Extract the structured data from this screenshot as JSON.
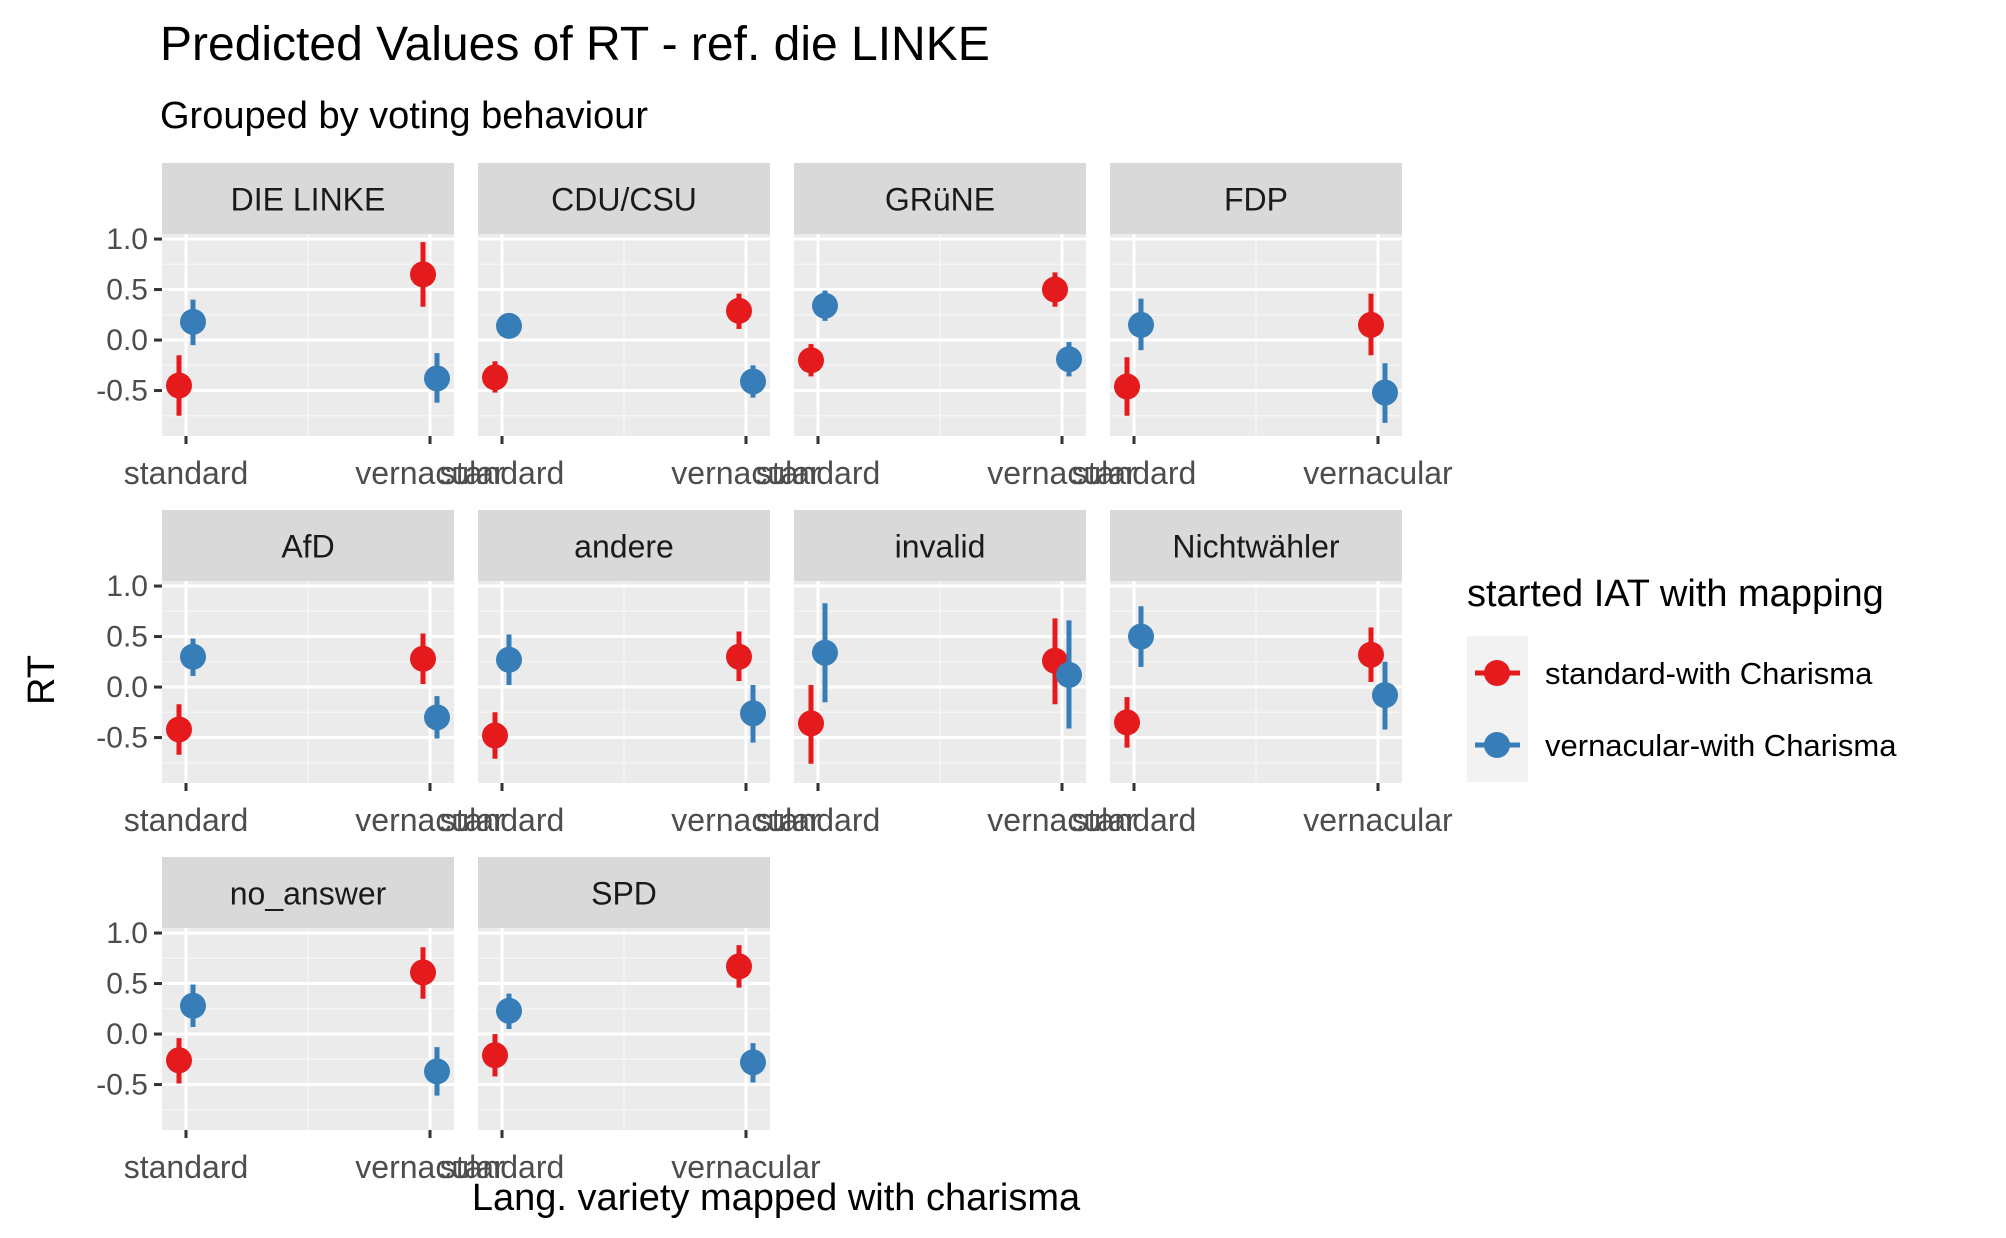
{
  "chart_data": {
    "type": "scatter",
    "title": "Predicted Values of RT - ref. die LINKE",
    "subtitle": "Grouped by voting behaviour",
    "xlabel": "Lang. variety mapped with charisma",
    "ylabel": "RT",
    "categories": [
      "standard",
      "vernacular"
    ],
    "ylim": [
      -0.95,
      1.05
    ],
    "y_ticks": [
      1.0,
      0.5,
      0.0,
      -0.5
    ],
    "y_tick_labels": [
      "1.0",
      "0.5",
      "0.0",
      "-0.5"
    ],
    "grid": true,
    "legend": {
      "title": "started IAT with mapping",
      "position": "right",
      "entries": [
        {
          "label": "standard-with Charisma",
          "color": "#E41A1C"
        },
        {
          "label": "vernacular-with Charisma",
          "color": "#377EB8"
        }
      ]
    },
    "panels": [
      {
        "name": "DIE LINKE",
        "series": [
          {
            "name": "standard-with Charisma",
            "values": [
              -0.45,
              0.65
            ],
            "lower": [
              -0.75,
              0.33
            ],
            "upper": [
              -0.15,
              0.97
            ]
          },
          {
            "name": "vernacular-with Charisma",
            "values": [
              0.18,
              -0.38
            ],
            "lower": [
              -0.05,
              -0.62
            ],
            "upper": [
              0.4,
              -0.13
            ]
          }
        ]
      },
      {
        "name": "CDU/CSU",
        "series": [
          {
            "name": "standard-with Charisma",
            "values": [
              -0.37,
              0.29
            ],
            "lower": [
              -0.52,
              0.11
            ],
            "upper": [
              -0.21,
              0.46
            ]
          },
          {
            "name": "vernacular-with Charisma",
            "values": [
              0.14,
              -0.41
            ],
            "lower": [
              0.03,
              -0.57
            ],
            "upper": [
              0.26,
              -0.25
            ]
          }
        ]
      },
      {
        "name": "GRüNE",
        "series": [
          {
            "name": "standard-with Charisma",
            "values": [
              -0.2,
              0.5
            ],
            "lower": [
              -0.36,
              0.33
            ],
            "upper": [
              -0.04,
              0.67
            ]
          },
          {
            "name": "vernacular-with Charisma",
            "values": [
              0.34,
              -0.19
            ],
            "lower": [
              0.19,
              -0.36
            ],
            "upper": [
              0.49,
              -0.02
            ]
          }
        ]
      },
      {
        "name": "FDP",
        "series": [
          {
            "name": "standard-with Charisma",
            "values": [
              -0.46,
              0.15
            ],
            "lower": [
              -0.75,
              -0.15
            ],
            "upper": [
              -0.17,
              0.46
            ]
          },
          {
            "name": "vernacular-with Charisma",
            "values": [
              0.15,
              -0.52
            ],
            "lower": [
              -0.1,
              -0.82
            ],
            "upper": [
              0.41,
              -0.23
            ]
          }
        ]
      },
      {
        "name": "AfD",
        "series": [
          {
            "name": "standard-with Charisma",
            "values": [
              -0.42,
              0.28
            ],
            "lower": [
              -0.67,
              0.03
            ],
            "upper": [
              -0.17,
              0.53
            ]
          },
          {
            "name": "vernacular-with Charisma",
            "values": [
              0.3,
              -0.3
            ],
            "lower": [
              0.11,
              -0.51
            ],
            "upper": [
              0.48,
              -0.09
            ]
          }
        ]
      },
      {
        "name": "andere",
        "series": [
          {
            "name": "standard-with Charisma",
            "values": [
              -0.48,
              0.3
            ],
            "lower": [
              -0.71,
              0.06
            ],
            "upper": [
              -0.25,
              0.55
            ]
          },
          {
            "name": "vernacular-with Charisma",
            "values": [
              0.27,
              -0.26
            ],
            "lower": [
              0.02,
              -0.55
            ],
            "upper": [
              0.52,
              0.02
            ]
          }
        ]
      },
      {
        "name": "invalid",
        "series": [
          {
            "name": "standard-with Charisma",
            "values": [
              -0.36,
              0.26
            ],
            "lower": [
              -0.76,
              -0.17
            ],
            "upper": [
              0.02,
              0.68
            ]
          },
          {
            "name": "vernacular-with Charisma",
            "values": [
              0.34,
              0.12
            ],
            "lower": [
              -0.15,
              -0.41
            ],
            "upper": [
              0.83,
              0.66
            ]
          }
        ]
      },
      {
        "name": "Nichtwähler",
        "series": [
          {
            "name": "standard-with Charisma",
            "values": [
              -0.35,
              0.32
            ],
            "lower": [
              -0.6,
              0.05
            ],
            "upper": [
              -0.1,
              0.59
            ]
          },
          {
            "name": "vernacular-with Charisma",
            "values": [
              0.5,
              -0.08
            ],
            "lower": [
              0.2,
              -0.42
            ],
            "upper": [
              0.8,
              0.25
            ]
          }
        ]
      },
      {
        "name": "no_answer",
        "series": [
          {
            "name": "standard-with Charisma",
            "values": [
              -0.26,
              0.61
            ],
            "lower": [
              -0.49,
              0.35
            ],
            "upper": [
              -0.04,
              0.86
            ]
          },
          {
            "name": "vernacular-with Charisma",
            "values": [
              0.28,
              -0.37
            ],
            "lower": [
              0.07,
              -0.61
            ],
            "upper": [
              0.49,
              -0.13
            ]
          }
        ]
      },
      {
        "name": "SPD",
        "series": [
          {
            "name": "standard-with Charisma",
            "values": [
              -0.21,
              0.67
            ],
            "lower": [
              -0.42,
              0.46
            ],
            "upper": [
              0.0,
              0.88
            ]
          },
          {
            "name": "vernacular-with Charisma",
            "values": [
              0.23,
              -0.28
            ],
            "lower": [
              0.05,
              -0.48
            ],
            "upper": [
              0.4,
              -0.09
            ]
          }
        ]
      }
    ]
  }
}
